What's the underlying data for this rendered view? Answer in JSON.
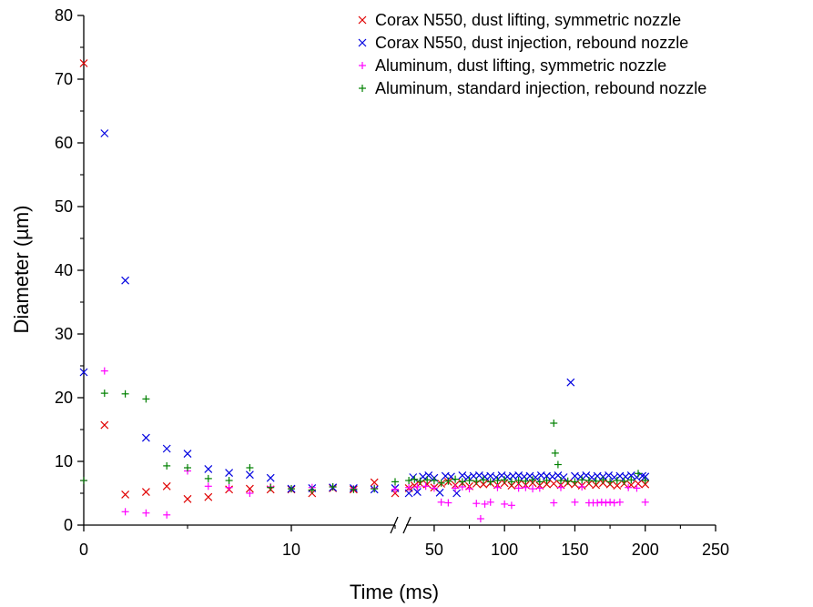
{
  "chart_data": {
    "type": "scatter",
    "title": "",
    "xlabel": "Time (ms)",
    "ylabel": "Diameter (µm)",
    "ylim": [
      0,
      80
    ],
    "y_ticks": [
      0,
      10,
      20,
      30,
      40,
      50,
      60,
      70,
      80
    ],
    "x_axis_broken": true,
    "x_segments": [
      {
        "range": [
          0,
          15
        ],
        "ticks": [
          0,
          10
        ]
      },
      {
        "range": [
          30,
          250
        ],
        "ticks": [
          50,
          100,
          150,
          200,
          250
        ]
      }
    ],
    "x_tick_labels": [
      "0",
      "10",
      "50",
      "100",
      "150",
      "200",
      "250"
    ],
    "legend_position": "top-right",
    "series": [
      {
        "name": "Corax N550, dust lifting, symmetric nozzle",
        "marker": "x",
        "color": "#e00000",
        "points": [
          [
            0,
            72.5
          ],
          [
            1,
            15.7
          ],
          [
            2,
            4.8
          ],
          [
            3,
            5.2
          ],
          [
            4,
            6.1
          ],
          [
            5,
            4.1
          ],
          [
            6,
            4.4
          ],
          [
            7,
            5.6
          ],
          [
            8,
            5.7
          ],
          [
            9,
            5.6
          ],
          [
            10,
            5.6
          ],
          [
            11,
            5.0
          ],
          [
            12,
            5.8
          ],
          [
            13,
            5.6
          ],
          [
            14,
            6.7
          ],
          [
            15,
            5.0
          ],
          [
            32,
            5.8
          ],
          [
            36,
            6.2
          ],
          [
            40,
            6.5
          ],
          [
            45,
            6.4
          ],
          [
            50,
            5.9
          ],
          [
            55,
            6.5
          ],
          [
            60,
            6.8
          ],
          [
            65,
            6.3
          ],
          [
            70,
            6.6
          ],
          [
            75,
            6.1
          ],
          [
            80,
            6.5
          ],
          [
            85,
            6.4
          ],
          [
            90,
            6.6
          ],
          [
            95,
            6.3
          ],
          [
            100,
            6.6
          ],
          [
            105,
            6.2
          ],
          [
            110,
            6.5
          ],
          [
            115,
            6.3
          ],
          [
            120,
            6.6
          ],
          [
            125,
            6.2
          ],
          [
            130,
            6.4
          ],
          [
            135,
            6.5
          ],
          [
            140,
            6.3
          ],
          [
            145,
            6.6
          ],
          [
            150,
            6.4
          ],
          [
            155,
            6.2
          ],
          [
            160,
            6.5
          ],
          [
            165,
            6.3
          ],
          [
            170,
            6.6
          ],
          [
            175,
            6.4
          ],
          [
            180,
            6.2
          ],
          [
            185,
            6.5
          ],
          [
            190,
            6.3
          ],
          [
            195,
            6.5
          ],
          [
            200,
            6.4
          ]
        ]
      },
      {
        "name": "Corax N550, dust injection, rebound nozzle",
        "marker": "x",
        "color": "#0000e0",
        "points": [
          [
            0,
            24.0
          ],
          [
            1,
            61.5
          ],
          [
            2,
            38.4
          ],
          [
            3,
            13.7
          ],
          [
            4,
            12.0
          ],
          [
            5,
            11.2
          ],
          [
            6,
            8.8
          ],
          [
            7,
            8.2
          ],
          [
            8,
            7.9
          ],
          [
            9,
            7.4
          ],
          [
            10,
            5.7
          ],
          [
            11,
            5.8
          ],
          [
            12,
            5.9
          ],
          [
            13,
            5.8
          ],
          [
            14,
            5.6
          ],
          [
            15,
            5.8
          ],
          [
            32,
            5.0
          ],
          [
            35,
            7.5
          ],
          [
            38,
            5.2
          ],
          [
            42,
            7.6
          ],
          [
            46,
            7.8
          ],
          [
            50,
            7.4
          ],
          [
            54,
            5.1
          ],
          [
            58,
            7.7
          ],
          [
            62,
            7.6
          ],
          [
            66,
            5.0
          ],
          [
            70,
            7.8
          ],
          [
            74,
            7.5
          ],
          [
            78,
            7.7
          ],
          [
            82,
            7.8
          ],
          [
            86,
            7.6
          ],
          [
            90,
            7.7
          ],
          [
            94,
            7.5
          ],
          [
            98,
            7.8
          ],
          [
            102,
            7.6
          ],
          [
            106,
            7.7
          ],
          [
            110,
            7.8
          ],
          [
            114,
            7.6
          ],
          [
            118,
            7.7
          ],
          [
            122,
            7.5
          ],
          [
            126,
            7.8
          ],
          [
            130,
            7.7
          ],
          [
            134,
            7.6
          ],
          [
            138,
            7.8
          ],
          [
            142,
            7.5
          ],
          [
            147,
            22.4
          ],
          [
            150,
            7.7
          ],
          [
            154,
            7.6
          ],
          [
            158,
            7.8
          ],
          [
            162,
            7.5
          ],
          [
            166,
            7.7
          ],
          [
            170,
            7.6
          ],
          [
            174,
            7.8
          ],
          [
            178,
            7.5
          ],
          [
            182,
            7.7
          ],
          [
            186,
            7.6
          ],
          [
            190,
            7.8
          ],
          [
            194,
            7.5
          ],
          [
            198,
            7.7
          ],
          [
            200,
            7.6
          ]
        ]
      },
      {
        "name": "Aluminum, dust lifting, symmetric nozzle",
        "marker": "+",
        "color": "#ff00ff",
        "points": [
          [
            0,
            7.0
          ],
          [
            1,
            24.2
          ],
          [
            2,
            2.1
          ],
          [
            3,
            1.9
          ],
          [
            4,
            1.6
          ],
          [
            5,
            8.5
          ],
          [
            6,
            6.1
          ],
          [
            7,
            5.9
          ],
          [
            8,
            5.0
          ],
          [
            9,
            6.0
          ],
          [
            10,
            5.7
          ],
          [
            11,
            5.9
          ],
          [
            12,
            6.0
          ],
          [
            13,
            5.7
          ],
          [
            14,
            5.8
          ],
          [
            15,
            5.6
          ],
          [
            32,
            5.9
          ],
          [
            38,
            6.0
          ],
          [
            44,
            6.1
          ],
          [
            50,
            5.8
          ],
          [
            55,
            3.6
          ],
          [
            60,
            3.5
          ],
          [
            65,
            5.8
          ],
          [
            70,
            6.0
          ],
          [
            75,
            5.7
          ],
          [
            80,
            3.4
          ],
          [
            83,
            1.0
          ],
          [
            86,
            3.3
          ],
          [
            90,
            3.6
          ],
          [
            95,
            5.9
          ],
          [
            100,
            3.3
          ],
          [
            105,
            3.1
          ],
          [
            110,
            5.8
          ],
          [
            115,
            5.9
          ],
          [
            120,
            5.7
          ],
          [
            125,
            5.8
          ],
          [
            135,
            3.5
          ],
          [
            140,
            5.9
          ],
          [
            150,
            3.6
          ],
          [
            155,
            6.0
          ],
          [
            160,
            3.5
          ],
          [
            163,
            3.5
          ],
          [
            166,
            3.5
          ],
          [
            169,
            3.6
          ],
          [
            172,
            3.5
          ],
          [
            175,
            3.6
          ],
          [
            178,
            3.5
          ],
          [
            182,
            3.6
          ],
          [
            188,
            5.9
          ],
          [
            194,
            5.8
          ],
          [
            200,
            3.6
          ]
        ]
      },
      {
        "name": "Aluminum, standard injection, rebound nozzle",
        "marker": "+",
        "color": "#008000",
        "points": [
          [
            0,
            7.0
          ],
          [
            1,
            20.7
          ],
          [
            2,
            20.6
          ],
          [
            3,
            19.8
          ],
          [
            4,
            9.3
          ],
          [
            5,
            9.0
          ],
          [
            6,
            7.3
          ],
          [
            7,
            7.0
          ],
          [
            8,
            9.0
          ],
          [
            9,
            5.9
          ],
          [
            10,
            5.7
          ],
          [
            11,
            5.5
          ],
          [
            12,
            6.0
          ],
          [
            13,
            5.6
          ],
          [
            14,
            5.7
          ],
          [
            15,
            6.8
          ],
          [
            32,
            7.0
          ],
          [
            36,
            7.2
          ],
          [
            40,
            6.9
          ],
          [
            45,
            7.1
          ],
          [
            50,
            7.0
          ],
          [
            55,
            6.6
          ],
          [
            60,
            6.9
          ],
          [
            65,
            7.2
          ],
          [
            70,
            6.8
          ],
          [
            75,
            7.0
          ],
          [
            80,
            6.9
          ],
          [
            85,
            7.1
          ],
          [
            90,
            6.8
          ],
          [
            95,
            7.0
          ],
          [
            100,
            7.1
          ],
          [
            105,
            6.8
          ],
          [
            110,
            7.0
          ],
          [
            115,
            6.9
          ],
          [
            120,
            7.1
          ],
          [
            125,
            6.8
          ],
          [
            130,
            7.0
          ],
          [
            135,
            16.0
          ],
          [
            136,
            11.3
          ],
          [
            138,
            9.5
          ],
          [
            140,
            7.0
          ],
          [
            145,
            6.9
          ],
          [
            150,
            6.8
          ],
          [
            155,
            7.1
          ],
          [
            160,
            7.0
          ],
          [
            165,
            6.9
          ],
          [
            170,
            7.1
          ],
          [
            175,
            6.8
          ],
          [
            180,
            7.0
          ],
          [
            185,
            6.9
          ],
          [
            190,
            7.1
          ],
          [
            195,
            8.1
          ],
          [
            200,
            7.0
          ]
        ]
      }
    ]
  }
}
